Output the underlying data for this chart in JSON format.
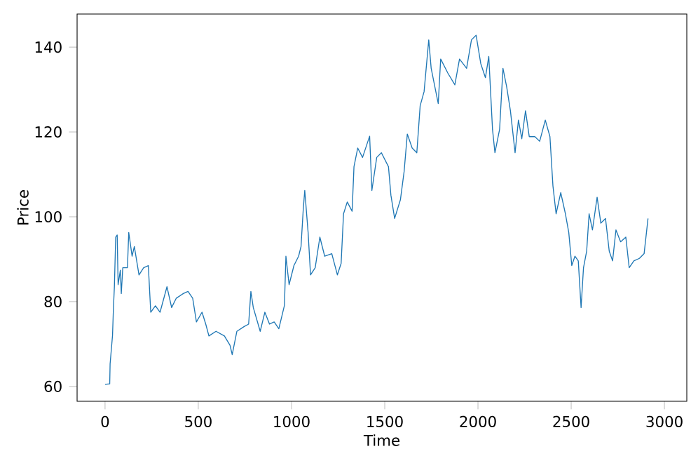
{
  "chart_data": {
    "type": "line",
    "xlabel": "Time",
    "ylabel": "Price",
    "xlim": [
      -150,
      3120
    ],
    "ylim": [
      56.5,
      147.8
    ],
    "xticks": [
      0,
      500,
      1000,
      1500,
      2000,
      2500,
      3000
    ],
    "yticks": [
      60,
      80,
      100,
      120,
      140
    ],
    "series": [
      {
        "color": "#1f77b4",
        "x": [
          0,
          25,
          27,
          40,
          45,
          50,
          57,
          65,
          70,
          82,
          87,
          95,
          120,
          127,
          145,
          157,
          182,
          207,
          232,
          245,
          270,
          295,
          332,
          357,
          382,
          420,
          445,
          470,
          490,
          520,
          540,
          557,
          595,
          640,
          670,
          682,
          707,
          745,
          770,
          782,
          795,
          832,
          857,
          882,
          907,
          932,
          962,
          970,
          987,
          1013,
          1038,
          1051,
          1063,
          1071,
          1089,
          1102,
          1127,
          1152,
          1178,
          1216,
          1246,
          1266,
          1279,
          1299,
          1325,
          1335,
          1355,
          1381,
          1406,
          1419,
          1431,
          1457,
          1482,
          1520,
          1533,
          1553,
          1584,
          1604,
          1621,
          1647,
          1672,
          1690,
          1711,
          1736,
          1749,
          1774,
          1787,
          1800,
          1838,
          1876,
          1901,
          1939,
          1965,
          1990,
          2015,
          2040,
          2058,
          2078,
          2091,
          2116,
          2134,
          2154,
          2174,
          2199,
          2217,
          2235,
          2255,
          2275,
          2305,
          2331,
          2361,
          2386,
          2402,
          2419,
          2444,
          2469,
          2487,
          2503,
          2520,
          2538,
          2553,
          2566,
          2583,
          2596,
          2614,
          2639,
          2659,
          2684,
          2704,
          2722,
          2740,
          2765,
          2793,
          2811,
          2836,
          2866,
          2891,
          2912
        ],
        "values": [
          60.5,
          60.6,
          65.3,
          72,
          78.6,
          83.5,
          95.2,
          95.7,
          84,
          87.4,
          81.9,
          88,
          88,
          96.3,
          90.7,
          93,
          86.3,
          88,
          88.5,
          77.5,
          79,
          77.5,
          83.5,
          78.6,
          80.8,
          81.9,
          82.4,
          80.8,
          75.2,
          77.5,
          74.7,
          71.9,
          73,
          71.9,
          69.7,
          67.5,
          73,
          74.1,
          74.7,
          82.4,
          78.6,
          73,
          77.5,
          74.7,
          75.2,
          73.6,
          79.1,
          90.7,
          84,
          88.5,
          90.7,
          93,
          101.8,
          106.2,
          96.3,
          86.3,
          88,
          95.2,
          90.7,
          91.3,
          86.3,
          89,
          100.7,
          103.5,
          101.3,
          111.8,
          116.2,
          114,
          117.3,
          119,
          106.2,
          114,
          115.1,
          111.8,
          105.1,
          99.6,
          104,
          110.7,
          119.5,
          116.2,
          115.1,
          126.2,
          129.5,
          141.7,
          135,
          129.5,
          126.7,
          137.2,
          133.9,
          131.1,
          137.2,
          135,
          141.7,
          142.8,
          136.1,
          132.8,
          137.8,
          120.6,
          115.1,
          120.6,
          135,
          130.6,
          125,
          115.1,
          122.8,
          118.4,
          125,
          118.9,
          118.9,
          117.8,
          122.8,
          118.9,
          107.3,
          100.7,
          105.7,
          100.7,
          96.3,
          88.5,
          90.7,
          89.6,
          78.6,
          88,
          91.9,
          100.7,
          96.9,
          104.6,
          98.5,
          99.6,
          91.9,
          89.6,
          96.9,
          94.1,
          95.2,
          88,
          89.6,
          90.2,
          91.3,
          99.6
        ]
      }
    ]
  }
}
